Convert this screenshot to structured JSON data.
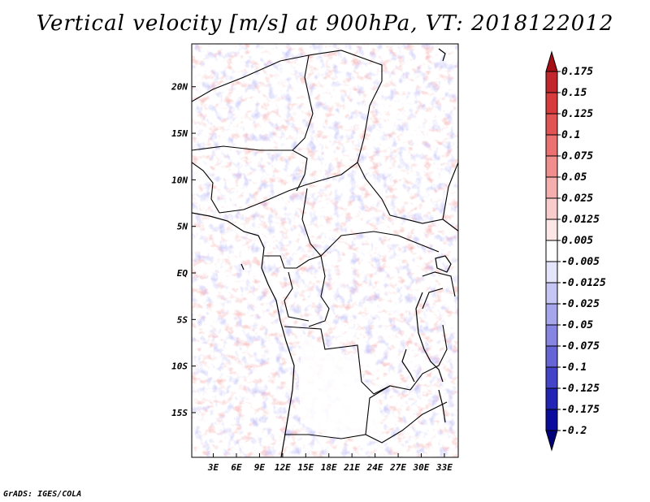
{
  "title": "Vertical velocity [m/s] at 900hPa, VT: 2018122012",
  "credit": "GrADS: IGES/COLA",
  "map": {
    "lon_labels": [
      "3E",
      "6E",
      "9E",
      "12E",
      "15E",
      "18E",
      "21E",
      "24E",
      "27E",
      "30E",
      "33E"
    ],
    "lon_values": [
      3,
      6,
      9,
      12,
      15,
      18,
      21,
      24,
      27,
      30,
      33
    ],
    "lat_labels": [
      "20N",
      "15N",
      "10N",
      "5N",
      "EQ",
      "5S",
      "10S",
      "15S"
    ],
    "lat_values": [
      20,
      15,
      10,
      5,
      0,
      -5,
      -10,
      -15
    ],
    "lon_range": [
      0.2,
      34.8
    ],
    "lat_range": [
      -19.8,
      24.6
    ]
  },
  "colorbar": {
    "labels": [
      "0.175",
      "0.15",
      "0.125",
      "0.1",
      "0.075",
      "0.05",
      "0.025",
      "0.0125",
      "0.005",
      "-0.005",
      "-0.0125",
      "-0.025",
      "-0.05",
      "-0.075",
      "-0.1",
      "-0.125",
      "-0.175",
      "-0.2"
    ],
    "colors": [
      "#a50f15",
      "#c1272d",
      "#d73b3b",
      "#e25353",
      "#eb7070",
      "#f08e8e",
      "#f5aeae",
      "#f9cccc",
      "#fce6e6",
      "#ffffff",
      "#e4e4fb",
      "#c6c6f4",
      "#a6a6ec",
      "#8686e2",
      "#6565d6",
      "#4444c8",
      "#2323b4",
      "#0c0c9c",
      "#00007a"
    ]
  }
}
